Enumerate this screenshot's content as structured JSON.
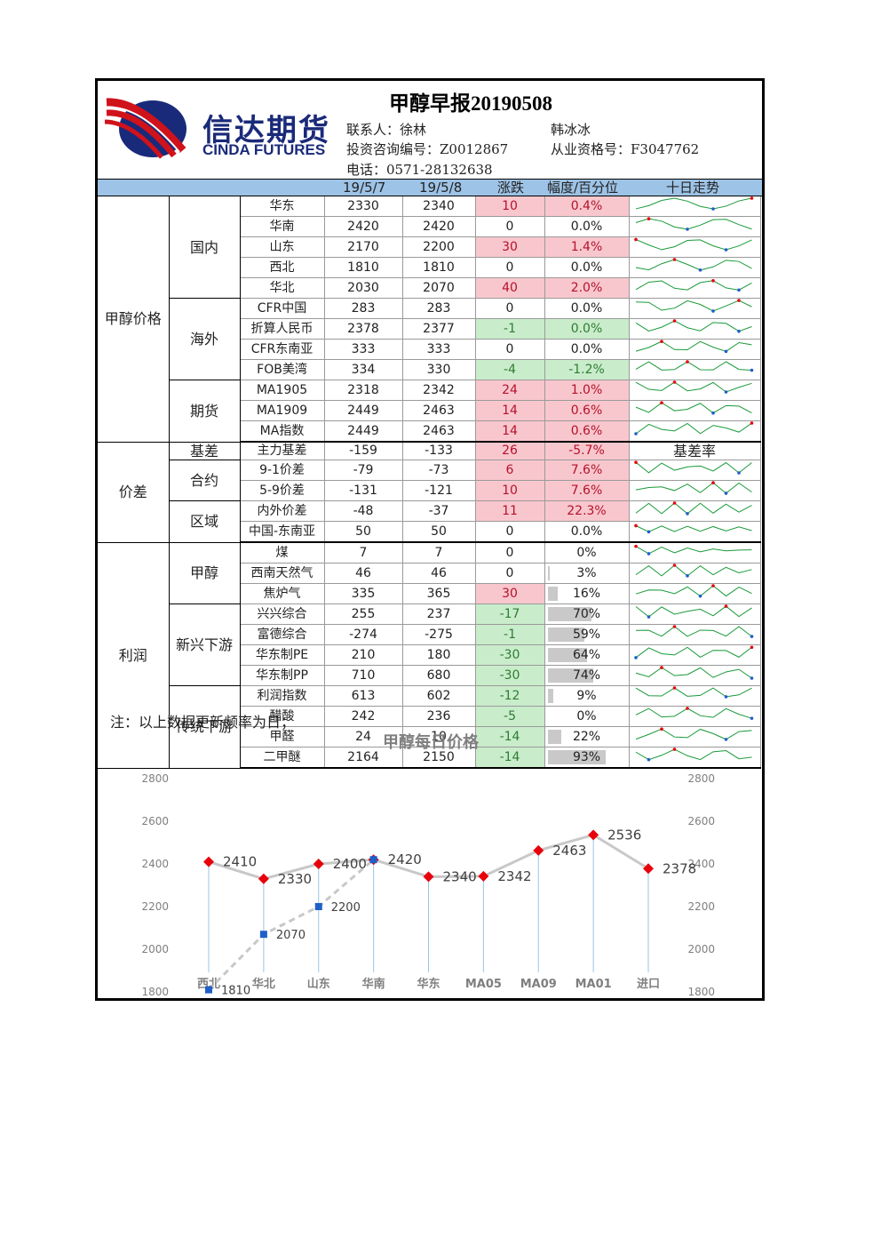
{
  "header": {
    "logo_zh": "信达期货",
    "logo_en": "CINDA FUTURES",
    "title": "甲醇早报20190508",
    "contact_label": "联系人：徐林",
    "contact2": "韩冰冰",
    "license_label": "投资咨询编号：Z0012867",
    "qual_label": "从业资格号：F3047762",
    "phone_label": "电话：0571-28132638"
  },
  "columns": {
    "d1": "19/5/7",
    "d2": "19/5/8",
    "chg": "涨跌",
    "pct": "幅度/百分位",
    "trend": "十日走势"
  },
  "groups": {
    "price": "甲醇价格",
    "domestic": "国内",
    "overseas": "海外",
    "futures": "期货",
    "spread": "价差",
    "basis": "基差",
    "contract": "合约",
    "region": "区域",
    "profit": "利润",
    "methanol": "甲醇",
    "new_down": "新兴下游",
    "trad_down": "传统下游",
    "basis_rate": "基差率"
  },
  "rows": [
    {
      "name": "华东",
      "d1": "2330",
      "d2": "2340",
      "chg": "10",
      "pct": "0.4%"
    },
    {
      "name": "华南",
      "d1": "2420",
      "d2": "2420",
      "chg": "0",
      "pct": "0.0%"
    },
    {
      "name": "山东",
      "d1": "2170",
      "d2": "2200",
      "chg": "30",
      "pct": "1.4%"
    },
    {
      "name": "西北",
      "d1": "1810",
      "d2": "1810",
      "chg": "0",
      "pct": "0.0%"
    },
    {
      "name": "华北",
      "d1": "2030",
      "d2": "2070",
      "chg": "40",
      "pct": "2.0%"
    },
    {
      "name": "CFR中国",
      "d1": "283",
      "d2": "283",
      "chg": "0",
      "pct": "0.0%"
    },
    {
      "name": "折算人民币",
      "d1": "2378",
      "d2": "2377",
      "chg": "-1",
      "pct": "0.0%"
    },
    {
      "name": "CFR东南亚",
      "d1": "333",
      "d2": "333",
      "chg": "0",
      "pct": "0.0%"
    },
    {
      "name": "FOB美湾",
      "d1": "334",
      "d2": "330",
      "chg": "-4",
      "pct": "-1.2%"
    },
    {
      "name": "MA1905",
      "d1": "2318",
      "d2": "2342",
      "chg": "24",
      "pct": "1.0%"
    },
    {
      "name": "MA1909",
      "d1": "2449",
      "d2": "2463",
      "chg": "14",
      "pct": "0.6%"
    },
    {
      "name": "MA指数",
      "d1": "2449",
      "d2": "2463",
      "chg": "14",
      "pct": "0.6%"
    },
    {
      "name": "主力基差",
      "d1": "-159",
      "d2": "-133",
      "chg": "26",
      "pct": "-5.7%"
    },
    {
      "name": "9-1价差",
      "d1": "-79",
      "d2": "-73",
      "chg": "6",
      "pct": "7.6%"
    },
    {
      "name": "5-9价差",
      "d1": "-131",
      "d2": "-121",
      "chg": "10",
      "pct": "7.6%"
    },
    {
      "name": "内外价差",
      "d1": "-48",
      "d2": "-37",
      "chg": "11",
      "pct": "22.3%"
    },
    {
      "name": "中国-东南亚",
      "d1": "50",
      "d2": "50",
      "chg": "0",
      "pct": "0.0%"
    },
    {
      "name": "煤",
      "d1": "7",
      "d2": "7",
      "chg": "0",
      "pct": "0%",
      "pctv": 0
    },
    {
      "name": "西南天然气",
      "d1": "46",
      "d2": "46",
      "chg": "0",
      "pct": "3%",
      "pctv": 0.03
    },
    {
      "name": "焦炉气",
      "d1": "335",
      "d2": "365",
      "chg": "30",
      "pct": "16%",
      "pctv": 0.16
    },
    {
      "name": "兴兴综合",
      "d1": "255",
      "d2": "237",
      "chg": "-17",
      "pct": "70%",
      "pctv": 0.7
    },
    {
      "name": "富德综合",
      "d1": "-274",
      "d2": "-275",
      "chg": "-1",
      "pct": "59%",
      "pctv": 0.59
    },
    {
      "name": "华东制PE",
      "d1": "210",
      "d2": "180",
      "chg": "-30",
      "pct": "64%",
      "pctv": 0.64
    },
    {
      "name": "华东制PP",
      "d1": "710",
      "d2": "680",
      "chg": "-30",
      "pct": "74%",
      "pctv": 0.74
    },
    {
      "name": "利润指数",
      "d1": "613",
      "d2": "602",
      "chg": "-12",
      "pct": "9%",
      "pctv": 0.09
    },
    {
      "name": "醋酸",
      "d1": "242",
      "d2": "236",
      "chg": "-5",
      "pct": "0%",
      "pctv": 0
    },
    {
      "name": "甲醛",
      "d1": "24",
      "d2": "10",
      "chg": "-14",
      "pct": "22%",
      "pctv": 0.22
    },
    {
      "name": "二甲醚",
      "d1": "2164",
      "d2": "2150",
      "chg": "-14",
      "pct": "93%",
      "pctv": 0.93
    }
  ],
  "note": "注：以上数据更新频率为日；",
  "chart_data": {
    "type": "line",
    "title": "甲醇每日价格",
    "categories": [
      "西北",
      "华北",
      "山东",
      "华南",
      "华东",
      "MA05",
      "MA09",
      "MA01",
      "进口"
    ],
    "series": [
      {
        "values": [
          2410,
          2330,
          2400,
          2420,
          2340,
          2342,
          2463,
          2536,
          2378
        ],
        "color": "#e8000b"
      },
      {
        "values": [
          1810,
          2070,
          2200,
          2420,
          null,
          null,
          null,
          null,
          null
        ],
        "color": "#1f5fc7"
      }
    ],
    "ylim": [
      1800,
      2800
    ],
    "yticks": [
      1800,
      2000,
      2200,
      2400,
      2600,
      2800
    ],
    "grid": false
  }
}
